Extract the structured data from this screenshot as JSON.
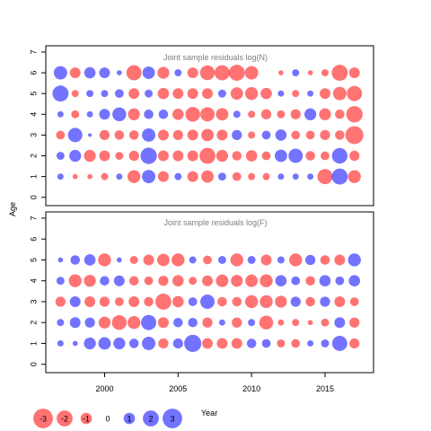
{
  "chart_data": [
    {
      "type": "scatter",
      "title": "Joint sample residuals log(N)",
      "ylabel": "Age",
      "ylim": [
        -0.4,
        7.3
      ],
      "yticks": [
        "0",
        "1",
        "2",
        "3",
        "4",
        "5",
        "6",
        "7"
      ],
      "ages": [
        1,
        2,
        3,
        4,
        5,
        6
      ],
      "years": [
        1997,
        1998,
        1999,
        2000,
        2001,
        2002,
        2003,
        2004,
        2005,
        2006,
        2007,
        2008,
        2009,
        2010,
        2011,
        2012,
        2013,
        2014,
        2015,
        2016,
        2017
      ],
      "residuals": {
        "1": [
          0.3,
          -0.2,
          -0.2,
          -0.4,
          0.3,
          -1.3,
          1.4,
          -0.9,
          0.4,
          -0.9,
          -1.2,
          0.5,
          -0.6,
          -0.4,
          -0.4,
          0.3,
          0.3,
          0.3,
          -1.8,
          2.0,
          -1.3
        ],
        "2": [
          0.5,
          1.1,
          -1.1,
          -0.9,
          -0.5,
          -0.8,
          2.1,
          -0.9,
          -0.9,
          -0.9,
          -2.0,
          -1.1,
          -0.7,
          -1.0,
          -0.6,
          1.2,
          1.6,
          -0.7,
          -0.6,
          1.9,
          -0.8
        ],
        "3": [
          -0.6,
          1.6,
          0.1,
          -0.8,
          -0.7,
          -0.7,
          1.4,
          -0.9,
          -0.8,
          -0.9,
          -1.2,
          -0.9,
          0.8,
          -0.4,
          0.6,
          1.0,
          -0.6,
          -0.6,
          -0.8,
          -0.7,
          -2.5
        ],
        "4": [
          0.3,
          -0.5,
          0.3,
          0.9,
          1.5,
          -1.1,
          0.7,
          0.7,
          -1.0,
          -1.7,
          -1.6,
          -1.2,
          0.4,
          -0.4,
          -0.8,
          -0.5,
          -0.8,
          1.1,
          -1.1,
          -0.7,
          -2.1
        ],
        "5": [
          2.0,
          -0.4,
          0.4,
          0.4,
          0.6,
          -0.9,
          0.5,
          -1.0,
          -0.9,
          -0.9,
          -0.9,
          0.5,
          -1.2,
          -1.3,
          -1.0,
          0.3,
          -0.4,
          0.3,
          -0.9,
          -1.4,
          -1.8
        ],
        "6": [
          1.4,
          -0.9,
          1.0,
          0.9,
          0.2,
          -1.8,
          1.2,
          -1.1,
          0.4,
          -0.9,
          -1.7,
          -1.8,
          -2.0,
          -1.4,
          0.0,
          -0.2,
          0.4,
          -0.2,
          -0.4,
          -2.0,
          -0.9
        ]
      }
    },
    {
      "type": "scatter",
      "title": "Joint sample residuals log(F)",
      "xlabel": "Year",
      "ylabel": "Age",
      "xlim": [
        1996.0,
        2018.3
      ],
      "xticks": [
        "2000",
        "2005",
        "2010",
        "2015"
      ],
      "ylim": [
        -0.4,
        7.3
      ],
      "yticks": [
        "0",
        "1",
        "2",
        "3",
        "4",
        "5",
        "6",
        "7"
      ],
      "ages": [
        1,
        2,
        3,
        4,
        5
      ],
      "years": [
        1997,
        1998,
        1999,
        2000,
        2001,
        2002,
        2003,
        2004,
        2005,
        2006,
        2007,
        2008,
        2009,
        2010,
        2011,
        2012,
        2013,
        2014,
        2015,
        2016,
        2017
      ],
      "residuals": {
        "1": [
          0.3,
          0.2,
          1.1,
          1.2,
          1.1,
          0.7,
          1.4,
          -0.8,
          0.8,
          2.3,
          -0.9,
          -0.9,
          -0.9,
          0.7,
          0.6,
          -0.5,
          -0.6,
          0.3,
          0.5,
          1.8,
          -0.8
        ],
        "2": [
          0.4,
          0.9,
          0.8,
          -1.1,
          -1.7,
          -1.3,
          1.8,
          -0.9,
          0.7,
          0.7,
          -0.8,
          0.3,
          -0.8,
          0.4,
          -1.5,
          -0.3,
          -0.4,
          -0.2,
          -0.5,
          0.9,
          -0.8
        ],
        "3": [
          -0.8,
          0.9,
          -0.9,
          -0.8,
          -0.6,
          -0.9,
          -0.7,
          -2.0,
          -1.0,
          0.6,
          1.6,
          -0.7,
          -0.7,
          -1.3,
          -1.3,
          -1.1,
          0.8,
          -0.7,
          0.8,
          -0.9,
          -0.6
        ],
        "4": [
          0.5,
          -1.3,
          -1.1,
          0.7,
          0.9,
          -0.7,
          -0.6,
          -0.8,
          -1.0,
          -0.5,
          -0.9,
          -1.2,
          -1.1,
          -1.2,
          -1.3,
          1.0,
          0.6,
          -0.7,
          1.0,
          0.6,
          1.0
        ],
        "5": [
          0.2,
          0.7,
          1.0,
          -1.3,
          0.2,
          -0.5,
          -0.9,
          -1.2,
          -1.3,
          0.4,
          -0.6,
          0.5,
          -1.3,
          0.5,
          -0.9,
          0.4,
          -1.3,
          0.8,
          -0.7,
          -0.9,
          1.3
        ]
      }
    }
  ],
  "legend": {
    "values": [
      -3,
      -2,
      -1,
      0,
      1,
      2,
      3
    ],
    "labels": [
      "-3",
      "-2",
      "-1",
      "0",
      "1",
      "2",
      "3"
    ],
    "placement": "bottom-left"
  },
  "colors": {
    "positive": "#0000ff",
    "negative": "#ff0000",
    "fill_opacity": 0.55,
    "axis": "#000000",
    "title": "#7f7f7f"
  }
}
